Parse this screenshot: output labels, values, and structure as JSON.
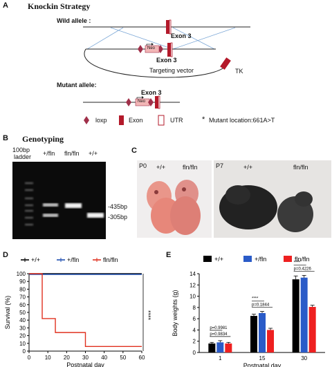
{
  "panel_a": {
    "letter": "A",
    "title": "Knockin Strategy",
    "wild_allele": "Wild allele :",
    "mutant_allele": "Mutant allele:",
    "exon_top": "Exon 3",
    "exon_mid": "Exon 3",
    "exon_mut": "Exon 3",
    "neo": "Neo",
    "targeting_vector": "Targeting vector",
    "tk": "TK",
    "legend": {
      "loxp": "loxp",
      "exon": "Exon",
      "utr": "UTR",
      "star": "*",
      "mutant": "Mutant location:661A>T"
    },
    "colors": {
      "exon": "#b3192a",
      "loxp": "#a0304a",
      "neo": "#f2b6b6"
    }
  },
  "panel_b": {
    "letter": "B",
    "title": "Genotyping",
    "lanes": [
      "100bp\nladder",
      "+/fln",
      "fln/fln",
      "+/+"
    ],
    "ladder_l1": "100bp",
    "ladder_l2": "ladder",
    "lane_het": "+/fln",
    "lane_hom": "fln/fln",
    "lane_wt": "+/+",
    "band_upper": "-435bp",
    "band_lower": "-305bp"
  },
  "panel_c": {
    "letter": "C",
    "p0": "P0",
    "p0_wt": "+/+",
    "p0_hom": "fln/fln",
    "p7": "P7",
    "p7_wt": "+/+",
    "p7_hom": "fln/fln"
  },
  "panel_d": {
    "letter": "D",
    "significance": "****",
    "chart_data": {
      "type": "line",
      "title": "",
      "xlabel": "Postnatal day",
      "ylabel": "Survival (%)",
      "xlim": [
        0,
        60
      ],
      "ylim": [
        0,
        100
      ],
      "xticks": [
        0,
        10,
        20,
        30,
        40,
        50,
        60
      ],
      "yticks": [
        0,
        10,
        20,
        30,
        40,
        50,
        60,
        70,
        80,
        90,
        100
      ],
      "legend_position": "top",
      "series": [
        {
          "name": "+/+",
          "color": "#000000",
          "x": [
            0,
            60
          ],
          "y": [
            100,
            100
          ]
        },
        {
          "name": "+/fln",
          "color": "#1f4fb0",
          "x": [
            0,
            60
          ],
          "y": [
            100,
            100
          ]
        },
        {
          "name": "fln/fln",
          "color": "#e0301e",
          "step": true,
          "x": [
            0,
            7,
            7,
            14,
            14,
            30,
            30,
            60
          ],
          "y": [
            100,
            100,
            42,
            42,
            24,
            24,
            6,
            6
          ]
        }
      ]
    }
  },
  "panel_e": {
    "letter": "E",
    "chart_data": {
      "type": "bar",
      "title": "",
      "xlabel": "Postnatal day",
      "ylabel": "Body weights (g)",
      "categories": [
        "1",
        "15",
        "30"
      ],
      "ylim": [
        0,
        14
      ],
      "yticks": [
        0,
        2,
        4,
        6,
        8,
        10,
        12,
        14
      ],
      "legend_position": "top",
      "series": [
        {
          "name": "+/+",
          "color": "#000000",
          "values": [
            1.6,
            6.5,
            13.0
          ],
          "errors": [
            0.2,
            0.3,
            0.6
          ]
        },
        {
          "name": "+/fln",
          "color": "#2a5bc8",
          "values": [
            1.8,
            7.0,
            13.3
          ],
          "errors": [
            0.3,
            0.3,
            0.4
          ]
        },
        {
          "name": "fln/fln",
          "color": "#ee2020",
          "values": [
            1.6,
            4.0,
            8.1
          ],
          "errors": [
            0.2,
            0.3,
            0.3
          ]
        }
      ],
      "annotations": [
        {
          "label": "p=0.9981",
          "group": 0
        },
        {
          "label": "p=0.9834",
          "group": 0
        },
        {
          "label": "****",
          "group": 1
        },
        {
          "label": "p=0.1844",
          "group": 1
        },
        {
          "label": "****",
          "group": 2
        },
        {
          "label": "p=0.4226",
          "group": 2
        }
      ]
    }
  }
}
